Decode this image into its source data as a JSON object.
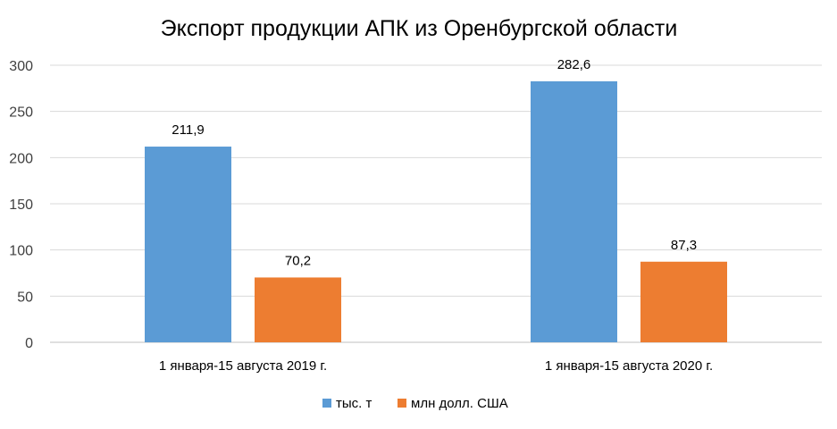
{
  "chart_data": {
    "type": "bar",
    "title": "Экспорт продукции АПК из Оренбургской области",
    "categories": [
      "1 января-15 августа 2019 г.",
      "1 января-15 августа 2020 г."
    ],
    "series": [
      {
        "name": "тыс. т",
        "values": [
          211.9,
          282.6
        ],
        "labels": [
          "211,9",
          "282,6"
        ],
        "color": "#5B9BD5"
      },
      {
        "name": "млн долл. США",
        "values": [
          70.2,
          87.3
        ],
        "labels": [
          "70,2",
          "87,3"
        ],
        "color": "#ED7D31"
      }
    ],
    "ylim": [
      0,
      300
    ],
    "yticks": [
      0,
      50,
      100,
      150,
      200,
      250,
      300
    ],
    "grid": true,
    "legend": "bottom",
    "xlabel": "",
    "ylabel": ""
  }
}
